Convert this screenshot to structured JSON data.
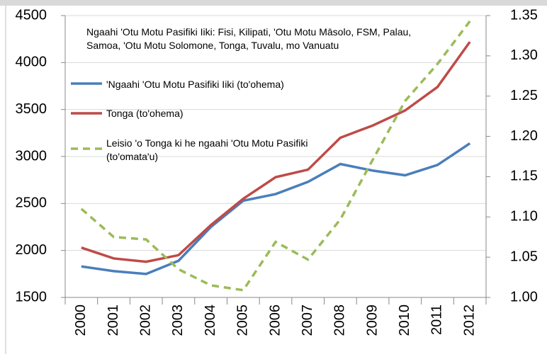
{
  "chart_data": {
    "type": "line",
    "annotation": "Ngaahi 'Otu Motu Pasifiki Iiki: Fisi, Kilipati, 'Otu Motu Māsolo, FSM, Palau, Samoa, 'Otu Motu Solomone, Tonga, Tuvalu, mo Vanuatu",
    "categories": [
      "2000",
      "2001",
      "2002",
      "2003",
      "2004",
      "2005",
      "2006",
      "2007",
      "2008",
      "2009",
      "2010",
      "2011",
      "2012"
    ],
    "series": [
      {
        "name": "'Ngaahi 'Otu Motu Pasifiki Iiki (to'ohema)",
        "color": "#4a7ebb",
        "dash": false,
        "values": [
          1830,
          1780,
          1750,
          1890,
          2250,
          2530,
          2600,
          2730,
          2920,
          2850,
          2800,
          2910,
          3140
        ]
      },
      {
        "name": "Tonga (to'ohema)",
        "color": "#be4b48",
        "dash": false,
        "values": [
          2030,
          1915,
          1880,
          1950,
          2270,
          2550,
          2780,
          2860,
          3200,
          3330,
          3490,
          3740,
          4220
        ]
      },
      {
        "name": "Leisio 'o Tonga ki he ngaahi 'Otu Motu Pasifiki (to'omata'u)",
        "color": "#9bbb59",
        "dash": true,
        "axis": "y2",
        "values": [
          1.11,
          1.075,
          1.072,
          1.035,
          1.015,
          1.009,
          1.069,
          1.047,
          1.097,
          1.171,
          1.244,
          1.29,
          1.343
        ]
      }
    ],
    "ylim": [
      1500,
      4500
    ],
    "yticks": [
      1500,
      2000,
      2500,
      3000,
      3500,
      4000,
      4500
    ],
    "y2lim": [
      1.0,
      1.35
    ],
    "y2ticks": [
      {
        "value": 1,
        "label": "1.00"
      },
      1.05,
      {
        "value": 1.1,
        "label": "1.10"
      },
      1.15,
      {
        "value": 1.2,
        "label": "1.20"
      },
      1.25,
      {
        "value": 1.3,
        "label": "1.30"
      },
      1.35
    ],
    "grid": true
  }
}
